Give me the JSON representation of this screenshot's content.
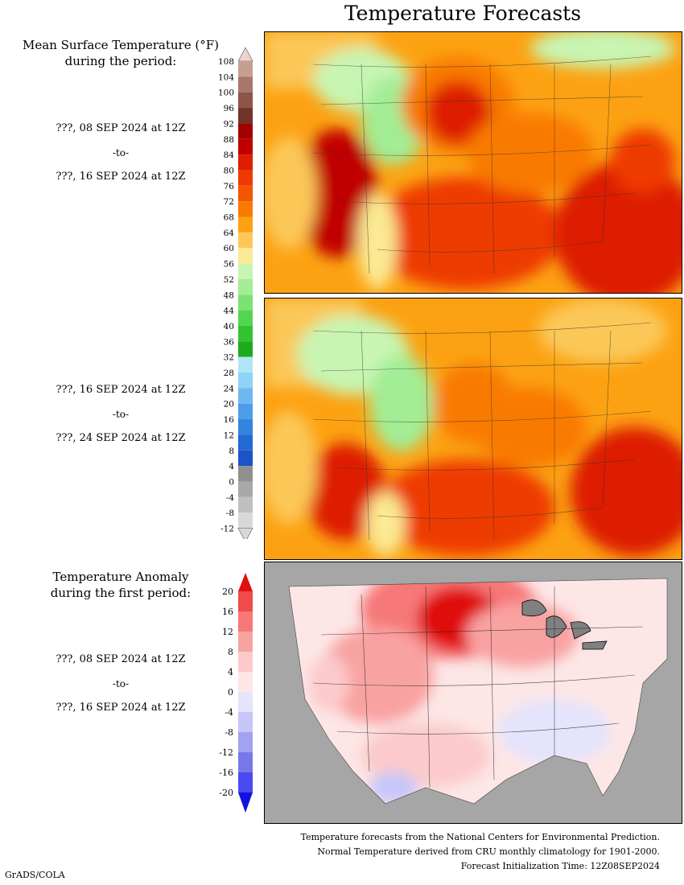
{
  "title": "Temperature Forecasts",
  "mean_panel": {
    "heading_line1": "Mean Surface Temperature (°F)",
    "heading_line2": "during the period:"
  },
  "period1": {
    "start": "???, 08 SEP 2024 at 12Z",
    "to": "-to-",
    "end": "???, 16 SEP 2024 at 12Z"
  },
  "period2": {
    "start": "???, 16 SEP 2024 at 12Z",
    "to": "-to-",
    "end": "???, 24 SEP 2024 at 12Z"
  },
  "anomaly_panel": {
    "heading_line1": "Temperature Anomaly",
    "heading_line2": "during the first period:"
  },
  "period3": {
    "start": "???, 08 SEP 2024 at 12Z",
    "to": "-to-",
    "end": "???, 16 SEP 2024 at 12Z"
  },
  "temp_scale": {
    "labels": [
      "108",
      "104",
      "100",
      "96",
      "92",
      "88",
      "84",
      "80",
      "76",
      "72",
      "68",
      "64",
      "60",
      "56",
      "52",
      "48",
      "44",
      "40",
      "36",
      "32",
      "28",
      "24",
      "20",
      "16",
      "12",
      "8",
      "4",
      "0",
      "-4",
      "-8",
      "-12"
    ],
    "colors": [
      "#eed2cb",
      "#c79e92",
      "#a8766a",
      "#8e5448",
      "#6e3528",
      "#a30000",
      "#c00000",
      "#dd1e00",
      "#ee3a00",
      "#f45500",
      "#f97a00",
      "#fca212",
      "#fbc858",
      "#fbe993",
      "#c8f5b2",
      "#a2ed95",
      "#7be373",
      "#52d650",
      "#32c332",
      "#1ea91e",
      "#b0e6f8",
      "#8fd3f8",
      "#6eb8f2",
      "#4d9de8",
      "#3384de",
      "#2369d2",
      "#1a54c8",
      "#909090",
      "#a8a8a8",
      "#c0c0c0",
      "#d8d8d8"
    ]
  },
  "anomaly_scale": {
    "labels": [
      "20",
      "16",
      "12",
      "8",
      "4",
      "0",
      "-4",
      "-8",
      "-12",
      "-16",
      "-20"
    ],
    "colors": [
      "#e01010",
      "#f04a4a",
      "#f67878",
      "#f9a2a2",
      "#fccaca",
      "#fde6e6",
      "#e4e4fc",
      "#c6c6f8",
      "#a2a2f0",
      "#7878e8",
      "#4a4af0",
      "#1212e0"
    ]
  },
  "footer": {
    "line1": "Temperature forecasts from the National Centers for Environmental Prediction.",
    "line2": "Normal Temperature derived from CRU monthly climatology for 1901-2000.",
    "line3": "Forecast Initialization Time: 12Z08SEP2024"
  },
  "credit": "GrADS/COLA"
}
